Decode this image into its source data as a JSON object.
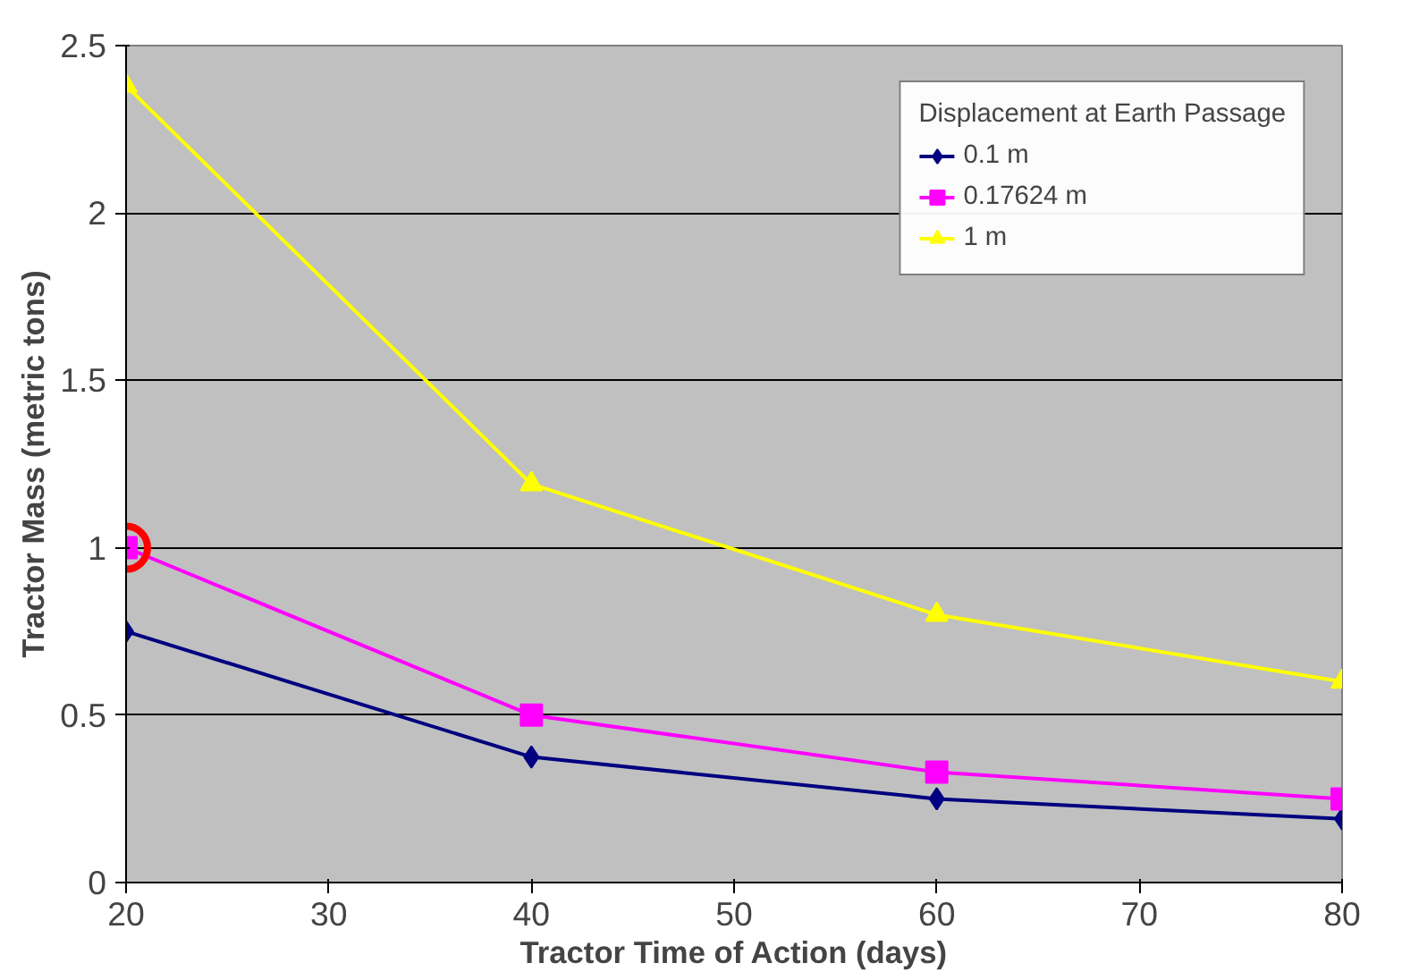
{
  "chart_data": {
    "type": "line",
    "xlabel": "Tractor Time of Action (days)",
    "ylabel": "Tractor Mass (metric tons)",
    "legend_title": "Displacement at Earth Passage",
    "x": [
      20,
      40,
      60,
      80
    ],
    "series": [
      {
        "name": "0.1 m",
        "color": "#000080",
        "values": [
          0.75,
          0.375,
          0.25,
          0.19
        ],
        "marker": "diamond"
      },
      {
        "name": "0.17624 m",
        "color": "#ff00ff",
        "values": [
          1.0,
          0.5,
          0.33,
          0.25
        ],
        "marker": "square"
      },
      {
        "name": "1 m",
        "color": "#ffff00",
        "values": [
          2.38,
          1.19,
          0.8,
          0.6
        ],
        "marker": "triangle"
      },
      {
        "type": "scatter",
        "color": "#ff0000",
        "x": [
          20
        ],
        "values": [
          1.0
        ],
        "marker": "circle"
      }
    ],
    "xlim": [
      20,
      80
    ],
    "xticks": [
      20,
      30,
      40,
      50,
      60,
      70,
      80
    ],
    "ylim": [
      0,
      2.5
    ],
    "yticks": [
      0,
      0.5,
      1,
      1.5,
      2,
      2.5
    ],
    "grid": "y",
    "legend": "top right",
    "line_style": "solid"
  }
}
